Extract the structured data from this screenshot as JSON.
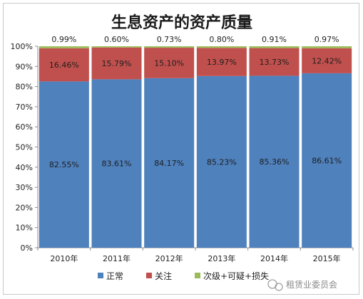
{
  "chart_data": {
    "type": "bar",
    "stacked": true,
    "title": "生息资产的资产质量",
    "categories": [
      "2010年",
      "2011年",
      "2012年",
      "2013年",
      "2014年",
      "2015年"
    ],
    "series": [
      {
        "name": "正常",
        "color": "#4f81bd",
        "values": [
          82.55,
          83.61,
          84.17,
          85.23,
          85.36,
          86.61
        ],
        "labels": [
          "82.55%",
          "83.61%",
          "84.17%",
          "85.23%",
          "85.36%",
          "86.61%"
        ]
      },
      {
        "name": "关注",
        "color": "#c0504d",
        "values": [
          16.46,
          15.79,
          15.1,
          13.97,
          13.73,
          12.42
        ],
        "labels": [
          "16.46%",
          "15.79%",
          "15.10%",
          "13.97%",
          "13.73%",
          "12.42%"
        ]
      },
      {
        "name": "次级+可疑+损失",
        "color": "#9bbb59",
        "values": [
          0.99,
          0.6,
          0.73,
          0.8,
          0.91,
          0.97
        ],
        "labels": [
          "0.99%",
          "0.60%",
          "0.73%",
          "0.80%",
          "0.91%",
          "0.97%"
        ]
      }
    ],
    "ylim": [
      0,
      100
    ],
    "yticks": [
      "0%",
      "10%",
      "20%",
      "30%",
      "40%",
      "50%",
      "60%",
      "70%",
      "80%",
      "90%",
      "100%"
    ],
    "grid": false,
    "legend": "bottom"
  },
  "watermark": {
    "icon": "wechat-logo-icon",
    "text": "租赁业委员会"
  }
}
